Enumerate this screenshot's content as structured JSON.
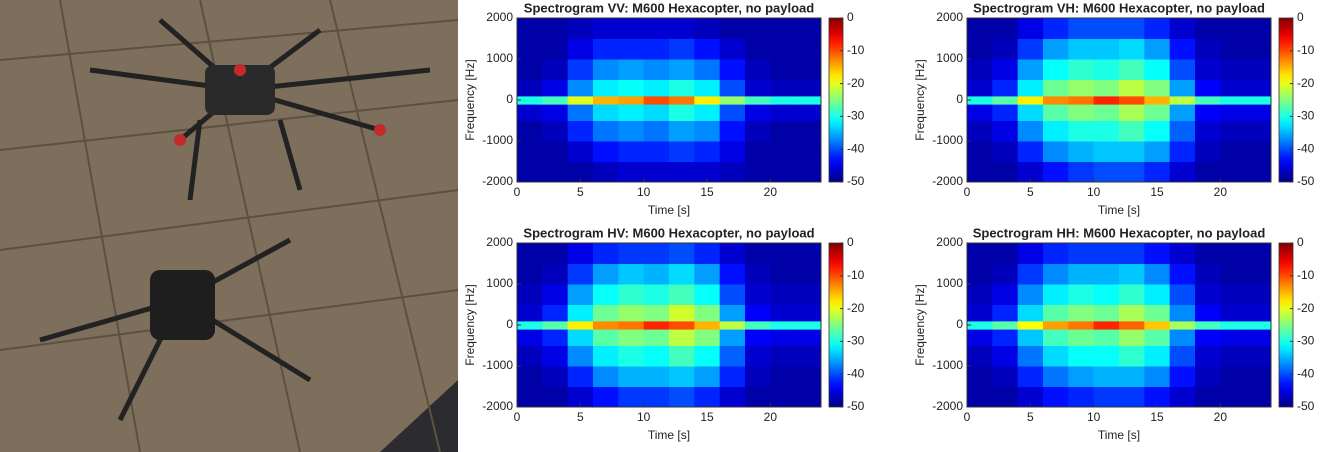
{
  "chart_data": [
    {
      "type": "heatmap",
      "title": "Spectrogram VV: M600 Hexacopter, no payload",
      "xlabel": "Time [s]",
      "ylabel": "Frequency [Hz]",
      "xlim": [
        0,
        24
      ],
      "xticks": [
        0,
        5,
        10,
        15,
        20
      ],
      "ylim": [
        -2000,
        2000
      ],
      "yticks": [
        -2000,
        -1000,
        0,
        1000,
        2000
      ],
      "clim": [
        -50,
        0
      ],
      "cticks": [
        0,
        -10,
        -20,
        -30,
        -40,
        -50
      ],
      "colormap": "jet",
      "x_edges": [
        0,
        2,
        4,
        6,
        8,
        10,
        12,
        14,
        16,
        18,
        20,
        22,
        24
      ],
      "y_edges": [
        -2000,
        -1500,
        -1000,
        -500,
        -100,
        100,
        500,
        1000,
        1500,
        2000
      ],
      "z": [
        [
          -48,
          -48,
          -48,
          -47,
          -46,
          -46,
          -46,
          -46,
          -47,
          -48,
          -48,
          -48
        ],
        [
          -48,
          -48,
          -46,
          -43,
          -42,
          -42,
          -41,
          -42,
          -45,
          -48,
          -48,
          -48
        ],
        [
          -48,
          -47,
          -42,
          -38,
          -37,
          -38,
          -36,
          -37,
          -43,
          -47,
          -48,
          -48
        ],
        [
          -46,
          -45,
          -38,
          -33,
          -32,
          -33,
          -30,
          -32,
          -40,
          -45,
          -46,
          -46
        ],
        [
          -30,
          -28,
          -20,
          -15,
          -14,
          -10,
          -12,
          -18,
          -24,
          -28,
          -30,
          -30
        ],
        [
          -47,
          -45,
          -37,
          -32,
          -31,
          -32,
          -30,
          -32,
          -40,
          -46,
          -47,
          -47
        ],
        [
          -48,
          -47,
          -41,
          -37,
          -36,
          -37,
          -36,
          -38,
          -43,
          -47,
          -48,
          -48
        ],
        [
          -48,
          -48,
          -45,
          -42,
          -42,
          -42,
          -41,
          -43,
          -46,
          -48,
          -48,
          -48
        ],
        [
          -48,
          -48,
          -47,
          -46,
          -46,
          -46,
          -46,
          -47,
          -48,
          -48,
          -48,
          -48
        ]
      ]
    },
    {
      "type": "heatmap",
      "title": "Spectrogram VH: M600 Hexacopter, no payload",
      "xlabel": "Time [s]",
      "ylabel": "Frequency [Hz]",
      "xlim": [
        0,
        24
      ],
      "xticks": [
        0,
        5,
        10,
        15,
        20
      ],
      "ylim": [
        -2000,
        2000
      ],
      "yticks": [
        -2000,
        -1000,
        0,
        1000,
        2000
      ],
      "clim": [
        -50,
        0
      ],
      "cticks": [
        0,
        -10,
        -20,
        -30,
        -40,
        -50
      ],
      "colormap": "jet",
      "x_edges": [
        0,
        2,
        4,
        6,
        8,
        10,
        12,
        14,
        16,
        18,
        20,
        22,
        24
      ],
      "y_edges": [
        -2000,
        -1500,
        -1000,
        -500,
        -100,
        100,
        500,
        1000,
        1500,
        2000
      ],
      "z": [
        [
          -48,
          -48,
          -46,
          -43,
          -41,
          -40,
          -40,
          -42,
          -46,
          -48,
          -48,
          -48
        ],
        [
          -48,
          -47,
          -42,
          -37,
          -35,
          -34,
          -34,
          -36,
          -42,
          -47,
          -48,
          -48
        ],
        [
          -47,
          -45,
          -37,
          -32,
          -30,
          -30,
          -28,
          -31,
          -39,
          -46,
          -47,
          -47
        ],
        [
          -45,
          -42,
          -33,
          -27,
          -25,
          -26,
          -23,
          -26,
          -36,
          -44,
          -45,
          -45
        ],
        [
          -30,
          -27,
          -18,
          -13,
          -12,
          -8,
          -10,
          -15,
          -22,
          -28,
          -30,
          -30
        ],
        [
          -46,
          -42,
          -32,
          -26,
          -24,
          -25,
          -22,
          -25,
          -36,
          -44,
          -46,
          -46
        ],
        [
          -47,
          -45,
          -36,
          -31,
          -29,
          -30,
          -28,
          -31,
          -40,
          -46,
          -47,
          -47
        ],
        [
          -48,
          -47,
          -41,
          -36,
          -34,
          -34,
          -33,
          -36,
          -43,
          -47,
          -48,
          -48
        ],
        [
          -48,
          -48,
          -45,
          -42,
          -40,
          -40,
          -40,
          -42,
          -46,
          -48,
          -48,
          -48
        ]
      ]
    },
    {
      "type": "heatmap",
      "title": "Spectrogram HV: M600 Hexacopter, no payload",
      "xlabel": "Time [s]",
      "ylabel": "Frequency [Hz]",
      "xlim": [
        0,
        24
      ],
      "xticks": [
        0,
        5,
        10,
        15,
        20
      ],
      "ylim": [
        -2000,
        2000
      ],
      "yticks": [
        -2000,
        -1000,
        0,
        1000,
        2000
      ],
      "clim": [
        -50,
        0
      ],
      "cticks": [
        0,
        -10,
        -20,
        -30,
        -40,
        -50
      ],
      "colormap": "jet",
      "x_edges": [
        0,
        2,
        4,
        6,
        8,
        10,
        12,
        14,
        16,
        18,
        20,
        22,
        24
      ],
      "y_edges": [
        -2000,
        -1500,
        -1000,
        -500,
        -100,
        100,
        500,
        1000,
        1500,
        2000
      ],
      "z": [
        [
          -48,
          -48,
          -46,
          -43,
          -41,
          -41,
          -40,
          -42,
          -46,
          -48,
          -48,
          -48
        ],
        [
          -48,
          -47,
          -42,
          -37,
          -35,
          -35,
          -34,
          -36,
          -42,
          -47,
          -48,
          -48
        ],
        [
          -47,
          -45,
          -37,
          -32,
          -30,
          -31,
          -28,
          -31,
          -39,
          -46,
          -47,
          -47
        ],
        [
          -45,
          -42,
          -33,
          -27,
          -25,
          -26,
          -22,
          -25,
          -36,
          -44,
          -45,
          -45
        ],
        [
          -30,
          -27,
          -18,
          -13,
          -12,
          -8,
          -10,
          -15,
          -22,
          -28,
          -30,
          -30
        ],
        [
          -46,
          -42,
          -32,
          -26,
          -24,
          -25,
          -21,
          -25,
          -36,
          -44,
          -46,
          -46
        ],
        [
          -47,
          -45,
          -36,
          -31,
          -29,
          -30,
          -28,
          -31,
          -40,
          -46,
          -47,
          -47
        ],
        [
          -48,
          -47,
          -41,
          -36,
          -34,
          -35,
          -33,
          -36,
          -43,
          -47,
          -48,
          -48
        ],
        [
          -48,
          -48,
          -45,
          -42,
          -41,
          -41,
          -40,
          -42,
          -46,
          -48,
          -48,
          -48
        ]
      ]
    },
    {
      "type": "heatmap",
      "title": "Spectrogram HH: M600 Hexacopter, no payload",
      "xlabel": "Time [s]",
      "ylabel": "Frequency [Hz]",
      "xlim": [
        0,
        24
      ],
      "xticks": [
        0,
        5,
        10,
        15,
        20
      ],
      "ylim": [
        -2000,
        2000
      ],
      "yticks": [
        -2000,
        -1000,
        0,
        1000,
        2000
      ],
      "clim": [
        -50,
        0
      ],
      "cticks": [
        0,
        -10,
        -20,
        -30,
        -40,
        -50
      ],
      "colormap": "jet",
      "x_edges": [
        0,
        2,
        4,
        6,
        8,
        10,
        12,
        14,
        16,
        18,
        20,
        22,
        24
      ],
      "y_edges": [
        -2000,
        -1500,
        -1000,
        -500,
        -100,
        100,
        500,
        1000,
        1500,
        2000
      ],
      "z": [
        [
          -48,
          -48,
          -46,
          -43,
          -42,
          -41,
          -41,
          -43,
          -46,
          -48,
          -48,
          -48
        ],
        [
          -48,
          -47,
          -42,
          -38,
          -36,
          -35,
          -35,
          -37,
          -43,
          -47,
          -48,
          -48
        ],
        [
          -47,
          -45,
          -38,
          -33,
          -31,
          -31,
          -29,
          -32,
          -40,
          -46,
          -47,
          -47
        ],
        [
          -45,
          -42,
          -34,
          -28,
          -26,
          -27,
          -24,
          -27,
          -37,
          -44,
          -45,
          -45
        ],
        [
          -30,
          -27,
          -19,
          -14,
          -12,
          -8,
          -11,
          -16,
          -23,
          -28,
          -30,
          -30
        ],
        [
          -46,
          -42,
          -33,
          -27,
          -25,
          -26,
          -23,
          -26,
          -37,
          -44,
          -46,
          -46
        ],
        [
          -47,
          -45,
          -37,
          -32,
          -30,
          -31,
          -29,
          -32,
          -40,
          -46,
          -47,
          -47
        ],
        [
          -48,
          -47,
          -41,
          -37,
          -35,
          -35,
          -34,
          -37,
          -43,
          -47,
          -48,
          -48
        ],
        [
          -48,
          -48,
          -45,
          -42,
          -41,
          -41,
          -41,
          -43,
          -46,
          -48,
          -48,
          -48
        ]
      ]
    }
  ]
}
